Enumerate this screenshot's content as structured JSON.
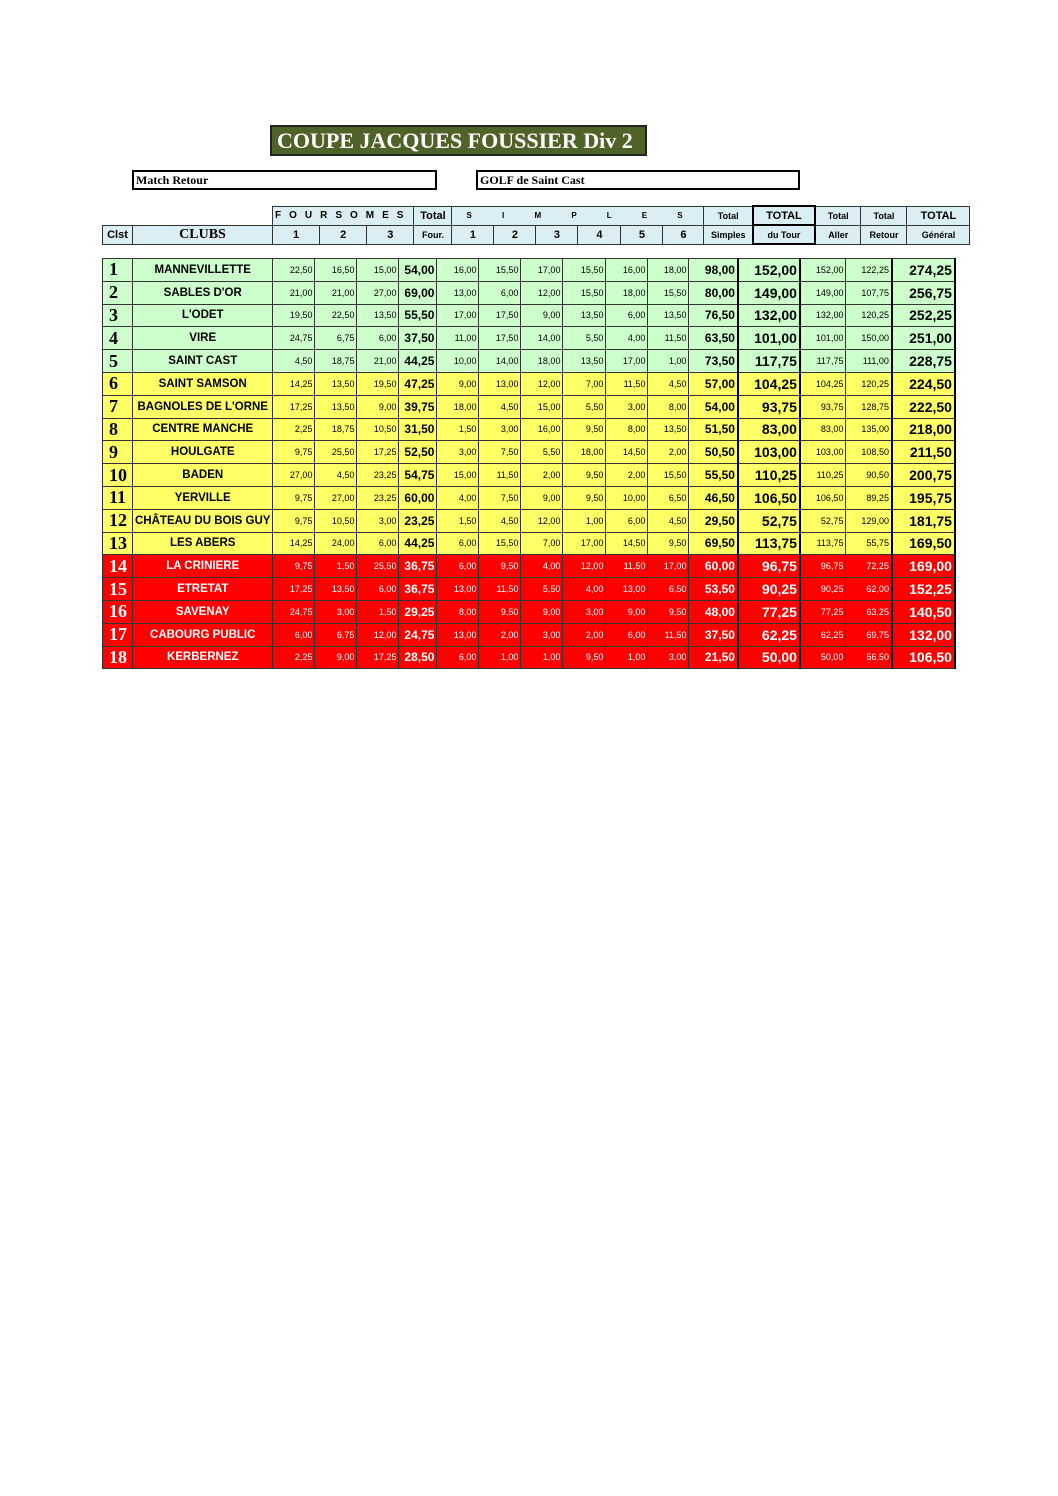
{
  "title": "COUPE JACQUES FOUSSIER Div 2",
  "match": "Match Retour",
  "venue": "GOLF de Saint Cast",
  "header": {
    "row1": {
      "foursomes": "FOURSOMES",
      "total": "Total",
      "simples": "S I M P L E S",
      "total_simples": "Total",
      "total_tour": "TOTAL",
      "total_aller": "Total",
      "total_retour": "Total",
      "total_general": "TOTAL"
    },
    "row2": {
      "clst": "Clst",
      "clubs": "CLUBS",
      "f1": "1",
      "f2": "2",
      "f3": "3",
      "four": "Four.",
      "s1": "1",
      "s2": "2",
      "s3": "3",
      "s4": "4",
      "s5": "5",
      "s6": "6",
      "simples": "Simples",
      "du_tour": "du Tour",
      "aller": "Aller",
      "retour": "Retour",
      "general": "Général"
    }
  },
  "colors": {
    "green": "#ccffcc",
    "yellow": "#ffff66",
    "red": "#ff0000",
    "title_bg": "#4f6228",
    "header_bg": "#dbeef4"
  },
  "rows": [
    {
      "rank": "1",
      "club": "MANNEVILLETTE",
      "zone": "green",
      "v": [
        "22,50",
        "16,50",
        "15,00",
        "54,00",
        "16,00",
        "15,50",
        "17,00",
        "15,50",
        "16,00",
        "18,00",
        "98,00",
        "152,00",
        "152,00",
        "122,25",
        "274,25"
      ]
    },
    {
      "rank": "2",
      "club": "SABLES D'OR",
      "zone": "green",
      "v": [
        "21,00",
        "21,00",
        "27,00",
        "69,00",
        "13,00",
        "6,00",
        "12,00",
        "15,50",
        "18,00",
        "15,50",
        "80,00",
        "149,00",
        "149,00",
        "107,75",
        "256,75"
      ]
    },
    {
      "rank": "3",
      "club": "L'ODET",
      "zone": "green",
      "v": [
        "19,50",
        "22,50",
        "13,50",
        "55,50",
        "17,00",
        "17,50",
        "9,00",
        "13,50",
        "6,00",
        "13,50",
        "76,50",
        "132,00",
        "132,00",
        "120,25",
        "252,25"
      ]
    },
    {
      "rank": "4",
      "club": "VIRE",
      "zone": "green",
      "v": [
        "24,75",
        "6,75",
        "6,00",
        "37,50",
        "11,00",
        "17,50",
        "14,00",
        "5,50",
        "4,00",
        "11,50",
        "63,50",
        "101,00",
        "101,00",
        "150,00",
        "251,00"
      ]
    },
    {
      "rank": "5",
      "club": "SAINT CAST",
      "zone": "green",
      "v": [
        "4,50",
        "18,75",
        "21,00",
        "44,25",
        "10,00",
        "14,00",
        "18,00",
        "13,50",
        "17,00",
        "1,00",
        "73,50",
        "117,75",
        "117,75",
        "111,00",
        "228,75"
      ]
    },
    {
      "rank": "6",
      "club": "SAINT SAMSON",
      "zone": "yellow",
      "v": [
        "14,25",
        "13,50",
        "19,50",
        "47,25",
        "9,00",
        "13,00",
        "12,00",
        "7,00",
        "11,50",
        "4,50",
        "57,00",
        "104,25",
        "104,25",
        "120,25",
        "224,50"
      ]
    },
    {
      "rank": "7",
      "club": "BAGNOLES DE L'ORNE",
      "zone": "yellow",
      "v": [
        "17,25",
        "13,50",
        "9,00",
        "39,75",
        "18,00",
        "4,50",
        "15,00",
        "5,50",
        "3,00",
        "8,00",
        "54,00",
        "93,75",
        "93,75",
        "128,75",
        "222,50"
      ]
    },
    {
      "rank": "8",
      "club": "CENTRE MANCHE",
      "zone": "yellow",
      "v": [
        "2,25",
        "18,75",
        "10,50",
        "31,50",
        "1,50",
        "3,00",
        "16,00",
        "9,50",
        "8,00",
        "13,50",
        "51,50",
        "83,00",
        "83,00",
        "135,00",
        "218,00"
      ]
    },
    {
      "rank": "9",
      "club": "HOULGATE",
      "zone": "yellow",
      "v": [
        "9,75",
        "25,50",
        "17,25",
        "52,50",
        "3,00",
        "7,50",
        "5,50",
        "18,00",
        "14,50",
        "2,00",
        "50,50",
        "103,00",
        "103,00",
        "108,50",
        "211,50"
      ]
    },
    {
      "rank": "10",
      "club": "BADEN",
      "zone": "yellow",
      "v": [
        "27,00",
        "4,50",
        "23,25",
        "54,75",
        "15,00",
        "11,50",
        "2,00",
        "9,50",
        "2,00",
        "15,50",
        "55,50",
        "110,25",
        "110,25",
        "90,50",
        "200,75"
      ]
    },
    {
      "rank": "11",
      "club": "YERVILLE",
      "zone": "yellow",
      "v": [
        "9,75",
        "27,00",
        "23,25",
        "60,00",
        "4,00",
        "7,50",
        "9,00",
        "9,50",
        "10,00",
        "6,50",
        "46,50",
        "106,50",
        "106,50",
        "89,25",
        "195,75"
      ]
    },
    {
      "rank": "12",
      "club": "CHÂTEAU DU BOIS GUY",
      "zone": "yellow",
      "v": [
        "9,75",
        "10,50",
        "3,00",
        "23,25",
        "1,50",
        "4,50",
        "12,00",
        "1,00",
        "6,00",
        "4,50",
        "29,50",
        "52,75",
        "52,75",
        "129,00",
        "181,75"
      ]
    },
    {
      "rank": "13",
      "club": "LES ABERS",
      "zone": "yellow",
      "v": [
        "14,25",
        "24,00",
        "6,00",
        "44,25",
        "6,00",
        "15,50",
        "7,00",
        "17,00",
        "14,50",
        "9,50",
        "69,50",
        "113,75",
        "113,75",
        "55,75",
        "169,50"
      ]
    },
    {
      "rank": "14",
      "club": "LA CRINIERE",
      "zone": "red",
      "v": [
        "9,75",
        "1,50",
        "25,50",
        "36,75",
        "6,00",
        "9,50",
        "4,00",
        "12,00",
        "11,50",
        "17,00",
        "60,00",
        "96,75",
        "96,75",
        "72,25",
        "169,00"
      ]
    },
    {
      "rank": "15",
      "club": "ETRETAT",
      "zone": "red",
      "v": [
        "17,25",
        "13,50",
        "6,00",
        "36,75",
        "13,00",
        "11,50",
        "5,50",
        "4,00",
        "13,00",
        "6,50",
        "53,50",
        "90,25",
        "90,25",
        "62,00",
        "152,25"
      ]
    },
    {
      "rank": "16",
      "club": "SAVENAY",
      "zone": "red",
      "v": [
        "24,75",
        "3,00",
        "1,50",
        "29,25",
        "8,00",
        "9,50",
        "9,00",
        "3,00",
        "9,00",
        "9,50",
        "48,00",
        "77,25",
        "77,25",
        "63,25",
        "140,50"
      ]
    },
    {
      "rank": "17",
      "club": "CABOURG PUBLIC",
      "zone": "red",
      "v": [
        "6,00",
        "6,75",
        "12,00",
        "24,75",
        "13,00",
        "2,00",
        "3,00",
        "2,00",
        "6,00",
        "11,50",
        "37,50",
        "62,25",
        "62,25",
        "69,75",
        "132,00"
      ]
    },
    {
      "rank": "18",
      "club": "KERBERNEZ",
      "zone": "red",
      "v": [
        "2,25",
        "9,00",
        "17,25",
        "28,50",
        "6,00",
        "1,00",
        "1,00",
        "9,50",
        "1,00",
        "3,00",
        "21,50",
        "50,00",
        "50,00",
        "56,50",
        "106,50"
      ]
    }
  ]
}
